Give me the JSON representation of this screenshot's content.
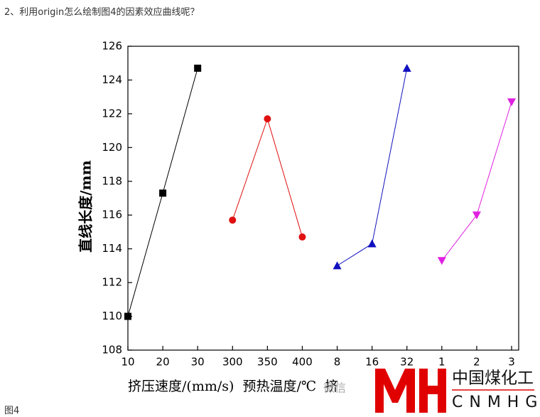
{
  "question": "2、利用origin怎么绘制图4的因素效应曲线呢？",
  "caption": "图4",
  "watermark": {
    "wechat": "微信",
    "brand": "中国煤化工",
    "brand_latin": "CNMHG"
  },
  "chart_data": {
    "type": "line",
    "x_label": "挤压速度/(mm/s)  预热温度/℃  挤",
    "y_label": "直线长度/mm",
    "categories": [
      "10",
      "20",
      "30",
      "300",
      "350",
      "400",
      "8",
      "16",
      "32",
      "1",
      "2",
      "3"
    ],
    "ylim": [
      108,
      126
    ],
    "yticks": [
      108,
      110,
      112,
      114,
      116,
      118,
      120,
      122,
      124,
      126
    ],
    "series": [
      {
        "color": "#000000",
        "marker": "square",
        "values": [
          110,
          117.3,
          124.7,
          null,
          null,
          null,
          null,
          null,
          null,
          null,
          null,
          null
        ]
      },
      {
        "color": "#e01010",
        "marker": "circle",
        "values": [
          null,
          null,
          null,
          115.7,
          121.7,
          114.7,
          null,
          null,
          null,
          null,
          null,
          null
        ]
      },
      {
        "color": "#1010c0",
        "marker": "triangle-up",
        "values": [
          null,
          null,
          null,
          null,
          null,
          null,
          113,
          114.3,
          124.7,
          null,
          null,
          null
        ]
      },
      {
        "color": "#e020e0",
        "marker": "triangle-down",
        "values": [
          null,
          null,
          null,
          null,
          null,
          null,
          null,
          null,
          null,
          113.3,
          116,
          122.7
        ]
      }
    ]
  }
}
